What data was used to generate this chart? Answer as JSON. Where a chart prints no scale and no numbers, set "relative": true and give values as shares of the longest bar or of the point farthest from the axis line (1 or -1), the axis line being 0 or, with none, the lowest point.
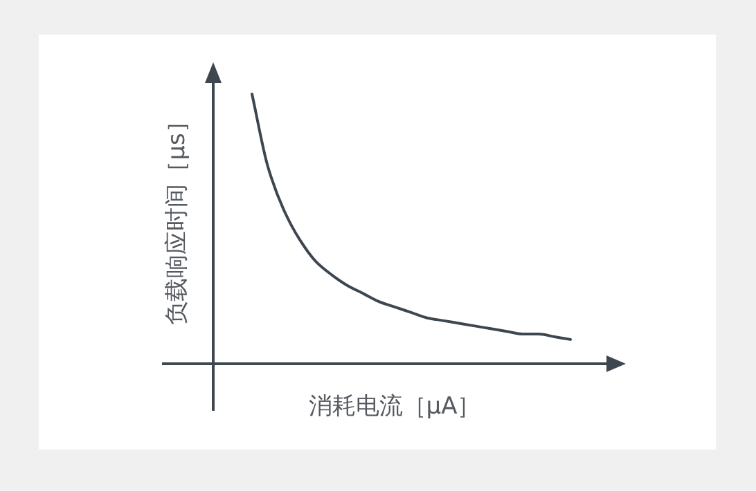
{
  "chart_data": {
    "type": "line",
    "relative": true,
    "xlabel": "消耗电流［μA］",
    "ylabel": "负载响应时间［μs］",
    "color": "#3e4650",
    "categories": [
      null,
      null,
      null,
      null,
      null,
      null,
      null,
      null,
      null,
      null,
      null,
      null,
      null,
      null,
      null,
      null,
      null,
      null,
      null,
      null,
      null
    ],
    "values": [
      1,
      0.73,
      0.57,
      0.46,
      0.38,
      0.33,
      0.29,
      0.26,
      0.23,
      0.21,
      0.19,
      0.17,
      0.16,
      0.15,
      0.14,
      0.13,
      0.12,
      0.11,
      0.11,
      0.1,
      0.09
    ]
  }
}
